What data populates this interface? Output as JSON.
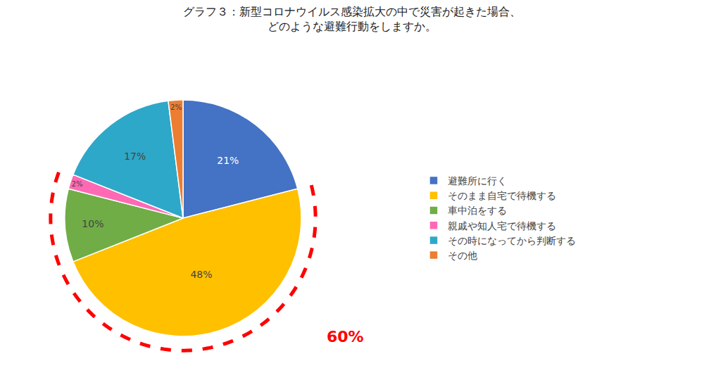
{
  "chart_data": {
    "type": "pie",
    "title": "グラフ３：新型コロナウイルス感染拡大の中で災害が起きた場合、\nどのような避難行動をしますか。",
    "categories": [
      "避難所に行く",
      "そのまま自宅で待機する",
      "車中泊をする",
      "親戚や知人宅で待機する",
      "その時になってから判断する",
      "その他"
    ],
    "values": [
      21,
      48,
      10,
      2,
      17,
      2
    ],
    "value_labels": [
      "21%",
      "48%",
      "10%",
      "2%",
      "17%",
      "2%"
    ],
    "colors": [
      "#4472C4",
      "#FFC000",
      "#70AD47",
      "#FF69B4",
      "#2EA8C8",
      "#ED7D31"
    ],
    "data_labels": true,
    "legend": "right",
    "annotations": [
      {
        "text": "60%",
        "color": "#FF0000"
      }
    ]
  }
}
